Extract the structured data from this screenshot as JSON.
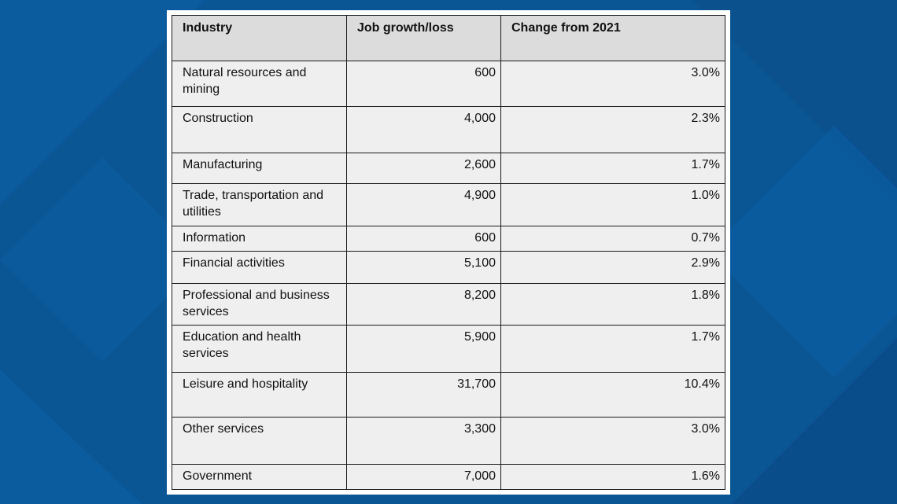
{
  "table": {
    "headers": [
      "Industry",
      "Job growth/loss",
      "Change from 2021"
    ],
    "rows": [
      {
        "industry": "Natural resources and mining",
        "growth": "600",
        "change": "3.0%"
      },
      {
        "industry": "Construction",
        "growth": "4,000",
        "change": "2.3%"
      },
      {
        "industry": "Manufacturing",
        "growth": "2,600",
        "change": "1.7%"
      },
      {
        "industry": "Trade, transportation and utilities",
        "growth": "4,900",
        "change": "1.0%"
      },
      {
        "industry": "Information",
        "growth": "600",
        "change": "0.7%"
      },
      {
        "industry": "Financial activities",
        "growth": "5,100",
        "change": "2.9%"
      },
      {
        "industry": "Professional and business services",
        "growth": "8,200",
        "change": "1.8%"
      },
      {
        "industry": "Education and health services",
        "growth": "5,900",
        "change": "1.7%"
      },
      {
        "industry": "Leisure and hospitality",
        "growth": "31,700",
        "change": "10.4%"
      },
      {
        "industry": "Other services",
        "growth": "3,300",
        "change": "3.0%"
      },
      {
        "industry": "Government",
        "growth": "7,000",
        "change": "1.6%"
      }
    ]
  },
  "colors": {
    "background": "#0a5594",
    "header_fill": "#dcdcdc",
    "cell_fill": "#efefef"
  }
}
